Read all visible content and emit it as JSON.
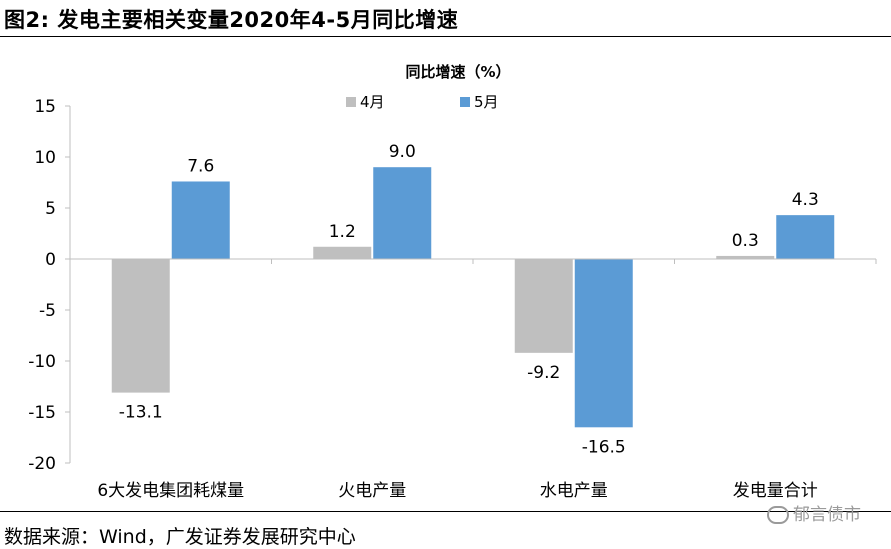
{
  "figure_title": "图2:  发电主要相关变量2020年4-5月同比增速",
  "source": "数据来源：Wind，广发证券发展研究中心",
  "watermark": "郁言债市",
  "colors": {
    "april": "#bfbfbf",
    "may": "#5b9bd5"
  },
  "chart_data": {
    "type": "bar",
    "title": "同比增速（%）",
    "categories": [
      "6大发电集团耗煤量",
      "火电产量",
      "水电产量",
      "发电量合计"
    ],
    "series": [
      {
        "name": "4月",
        "values": [
          -13.1,
          1.2,
          -9.2,
          0.3
        ]
      },
      {
        "name": "5月",
        "values": [
          7.6,
          9.0,
          -16.5,
          4.3
        ]
      }
    ],
    "ylim": [
      -20,
      15
    ],
    "yticks": [
      "15",
      "10",
      "5",
      "0",
      "-5",
      "-10",
      "-15",
      "-20"
    ],
    "data_labels": [
      [
        "-13.1",
        "1.2",
        "-9.2",
        "0.3"
      ],
      [
        "7.6",
        "9.0",
        "-16.5",
        "4.3"
      ]
    ],
    "legend_position": "top-center",
    "grid": false
  }
}
